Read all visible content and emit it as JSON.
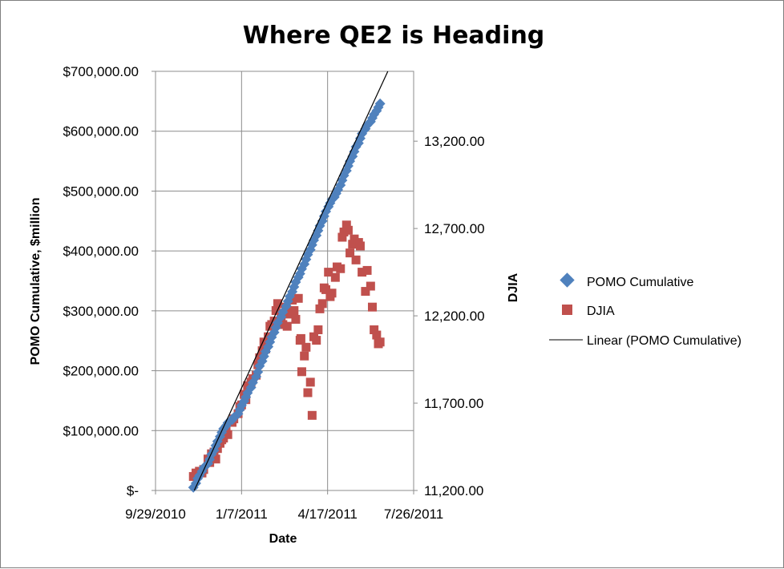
{
  "chart_data": {
    "type": "scatter",
    "title": "Where QE2 is Heading",
    "xlabel": "Date",
    "ylabel": "POMO Cumulative, $million",
    "y2label": "DJIA",
    "x_ticks": [
      "9/29/2010",
      "1/7/2011",
      "4/17/2011",
      "7/26/2011"
    ],
    "y_ticks": [
      "$-",
      "$100,000.00",
      "$200,000.00",
      "$300,000.00",
      "$400,000.00",
      "$500,000.00",
      "$600,000.00",
      "$700,000.00"
    ],
    "y2_ticks": [
      "11,200.00",
      "11,700.00",
      "12,200.00",
      "12,700.00",
      "13,200.00"
    ],
    "xlim": [
      "2010-09-29",
      "2011-07-26"
    ],
    "ylim": [
      0,
      700000
    ],
    "y2lim": [
      11200,
      13600
    ],
    "grid": true,
    "legend_position": "right",
    "colors": {
      "pomo": "#4f81bd",
      "djia": "#c0504d",
      "trend": "#000000"
    },
    "series": [
      {
        "name": "POMO Cumulative",
        "axis": "left",
        "marker": "diamond",
        "x": [
          "2010-11-12",
          "2010-11-15",
          "2010-11-17",
          "2010-11-19",
          "2010-11-22",
          "2010-11-24",
          "2010-11-29",
          "2010-12-01",
          "2010-12-03",
          "2010-12-06",
          "2010-12-08",
          "2010-12-10",
          "2010-12-13",
          "2010-12-15",
          "2010-12-17",
          "2010-12-20",
          "2010-12-22",
          "2010-12-27",
          "2010-12-29",
          "2011-01-03",
          "2011-01-05",
          "2011-01-07",
          "2011-01-10",
          "2011-01-12",
          "2011-01-14",
          "2011-01-18",
          "2011-01-20",
          "2011-01-24",
          "2011-01-26",
          "2011-01-28",
          "2011-01-31",
          "2011-02-02",
          "2011-02-04",
          "2011-02-07",
          "2011-02-09",
          "2011-02-11",
          "2011-02-14",
          "2011-02-16",
          "2011-02-18",
          "2011-02-22",
          "2011-02-24",
          "2011-02-28",
          "2011-03-02",
          "2011-03-04",
          "2011-03-07",
          "2011-03-09",
          "2011-03-11",
          "2011-03-14",
          "2011-03-16",
          "2011-03-18",
          "2011-03-21",
          "2011-03-23",
          "2011-03-25",
          "2011-03-28",
          "2011-03-30",
          "2011-04-01",
          "2011-04-04",
          "2011-04-06",
          "2011-04-08",
          "2011-04-11",
          "2011-04-13",
          "2011-04-15",
          "2011-04-18",
          "2011-04-20",
          "2011-04-22",
          "2011-04-25",
          "2011-04-27",
          "2011-04-29",
          "2011-05-02",
          "2011-05-04",
          "2011-05-06",
          "2011-05-09",
          "2011-05-11",
          "2011-05-13",
          "2011-05-16",
          "2011-05-18",
          "2011-05-20",
          "2011-05-23",
          "2011-05-25",
          "2011-05-27",
          "2011-05-31",
          "2011-06-02",
          "2011-06-06",
          "2011-06-08",
          "2011-06-10",
          "2011-06-13",
          "2011-06-15",
          "2011-06-17"
        ],
        "values": [
          5000,
          12000,
          20000,
          25000,
          32000,
          38000,
          45000,
          52000,
          60000,
          67000,
          75000,
          82000,
          90000,
          97000,
          103000,
          108000,
          113000,
          118000,
          122000,
          128000,
          135000,
          142000,
          149000,
          156000,
          163000,
          172000,
          180000,
          190000,
          198000,
          208000,
          216000,
          224000,
          232000,
          240000,
          248000,
          256000,
          264000,
          272000,
          280000,
          290000,
          298000,
          308000,
          316000,
          324000,
          332000,
          340000,
          348000,
          356000,
          362000,
          370000,
          378000,
          386000,
          394000,
          402000,
          410000,
          418000,
          426000,
          434000,
          442000,
          450000,
          458000,
          466000,
          474000,
          480000,
          486000,
          490000,
          496000,
          502000,
          510000,
          518000,
          526000,
          534000,
          542000,
          550000,
          558000,
          566000,
          574000,
          580000,
          588000,
          596000,
          604000,
          610000,
          616000,
          622000,
          628000,
          634000,
          640000,
          646000
        ]
      },
      {
        "name": "DJIA",
        "axis": "right",
        "marker": "square",
        "x": [
          "2010-11-12",
          "2010-11-15",
          "2010-11-17",
          "2010-11-19",
          "2010-11-22",
          "2010-11-24",
          "2010-11-29",
          "2010-12-01",
          "2010-12-03",
          "2010-12-06",
          "2010-12-08",
          "2010-12-10",
          "2010-12-13",
          "2010-12-15",
          "2010-12-17",
          "2010-12-20",
          "2010-12-22",
          "2010-12-27",
          "2010-12-29",
          "2011-01-03",
          "2011-01-05",
          "2011-01-07",
          "2011-01-10",
          "2011-01-12",
          "2011-01-14",
          "2011-01-18",
          "2011-01-20",
          "2011-01-24",
          "2011-01-26",
          "2011-01-28",
          "2011-01-31",
          "2011-02-02",
          "2011-02-04",
          "2011-02-07",
          "2011-02-09",
          "2011-02-11",
          "2011-02-14",
          "2011-02-16",
          "2011-02-18",
          "2011-02-22",
          "2011-02-24",
          "2011-02-28",
          "2011-03-01",
          "2011-03-03",
          "2011-03-07",
          "2011-03-09",
          "2011-03-11",
          "2011-03-14",
          "2011-03-16",
          "2011-03-17",
          "2011-03-18",
          "2011-03-21",
          "2011-03-23",
          "2011-03-25",
          "2011-03-28",
          "2011-03-30",
          "2011-04-01",
          "2011-04-04",
          "2011-04-06",
          "2011-04-08",
          "2011-04-11",
          "2011-04-13",
          "2011-04-15",
          "2011-04-18",
          "2011-04-20",
          "2011-04-22",
          "2011-04-26",
          "2011-04-28",
          "2011-05-02",
          "2011-05-04",
          "2011-05-06",
          "2011-05-09",
          "2011-05-11",
          "2011-05-13",
          "2011-05-16",
          "2011-05-18",
          "2011-05-20",
          "2011-05-23",
          "2011-05-25",
          "2011-05-27",
          "2011-05-31",
          "2011-06-02",
          "2011-06-06",
          "2011-06-08",
          "2011-06-10",
          "2011-06-13",
          "2011-06-15",
          "2011-06-17"
        ],
        "values": [
          11280,
          11300,
          11290,
          11310,
          11300,
          11320,
          11380,
          11360,
          11410,
          11420,
          11380,
          11440,
          11470,
          11490,
          11500,
          11540,
          11520,
          11590,
          11610,
          11640,
          11680,
          11690,
          11750,
          11720,
          11800,
          11820,
          11840,
          11860,
          11920,
          11960,
          12000,
          12050,
          12010,
          12080,
          12140,
          12150,
          12170,
          12230,
          12270,
          12180,
          12150,
          12250,
          12140,
          12210,
          12290,
          12230,
          12180,
          12300,
          12060,
          12070,
          11880,
          11970,
          12020,
          11760,
          11820,
          11630,
          12080,
          12060,
          12120,
          12240,
          12270,
          12360,
          12350,
          12450,
          12310,
          12330,
          12420,
          12480,
          12470,
          12650,
          12680,
          12720,
          12690,
          12560,
          12610,
          12640,
          12520,
          12620,
          12600,
          12450,
          12340,
          12460,
          12370,
          12250,
          12120,
          12090,
          12040,
          12050
        ]
      },
      {
        "name": "Linear (POMO Cumulative)",
        "axis": "left",
        "type": "trendline",
        "x": [
          "2010-11-13",
          "2011-06-26"
        ],
        "values": [
          0,
          700000
        ]
      }
    ]
  }
}
